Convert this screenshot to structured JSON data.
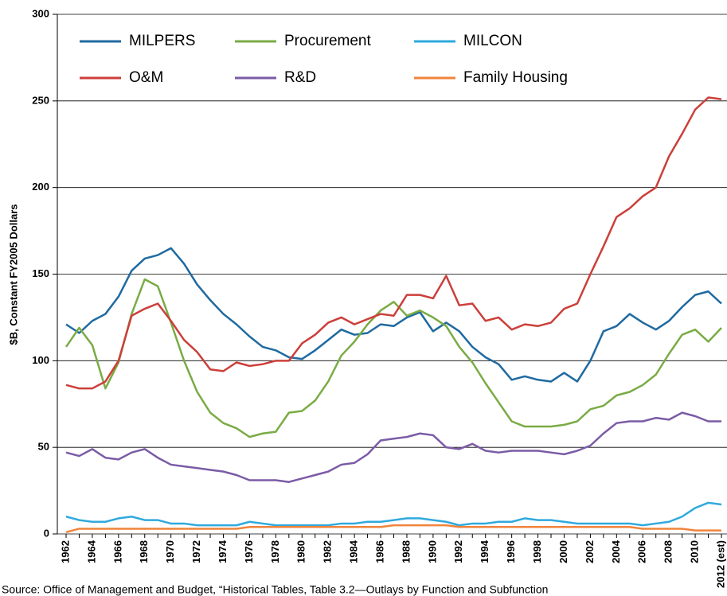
{
  "chart_data": {
    "type": "line",
    "ylabel": "$B, Constant FY2005 Dollars",
    "source": "Source: Office of Management and Budget, “Historical Tables, Table 3.2—Outlays by Function and Subfunction",
    "categories": [
      "1962",
      null,
      "1964",
      null,
      "1966",
      null,
      "1968",
      null,
      "1970",
      null,
      "1972",
      null,
      "1974",
      null,
      "1976",
      null,
      "1978",
      null,
      "1980",
      null,
      "1982",
      null,
      "1984",
      null,
      "1986",
      null,
      "1988",
      null,
      "1990",
      null,
      "1992",
      null,
      "1994",
      null,
      "1996",
      null,
      "1998",
      null,
      "2000",
      null,
      "2002",
      null,
      "2004",
      null,
      "2006",
      null,
      "2008",
      null,
      "2010",
      null,
      "2012 (est)"
    ],
    "series": [
      {
        "name": "MILPERS",
        "color": "#1f6aa0",
        "values": [
          121,
          116,
          123,
          127,
          137,
          152,
          159,
          161,
          165,
          156,
          144,
          135,
          127,
          121,
          114,
          108,
          106,
          102,
          101,
          106,
          112,
          118,
          115,
          116,
          121,
          120,
          125,
          128,
          117,
          122,
          117,
          108,
          102,
          98,
          89,
          91,
          89,
          88,
          93,
          88,
          100,
          117,
          120,
          127,
          122,
          118,
          123,
          131,
          138,
          140,
          133
        ]
      },
      {
        "name": "Procurement",
        "color": "#7aab45",
        "values": [
          108,
          119,
          109,
          84,
          99,
          127,
          147,
          143,
          122,
          100,
          82,
          70,
          64,
          61,
          56,
          58,
          59,
          70,
          71,
          77,
          88,
          103,
          111,
          121,
          129,
          134,
          126,
          129,
          125,
          120,
          108,
          99,
          87,
          76,
          65,
          62,
          62,
          62,
          63,
          65,
          72,
          74,
          80,
          82,
          86,
          92,
          104,
          115,
          118,
          111,
          119
        ]
      },
      {
        "name": "MILCON",
        "color": "#2fa9dd",
        "values": [
          10,
          8,
          7,
          7,
          9,
          10,
          8,
          8,
          6,
          6,
          5,
          5,
          5,
          5,
          7,
          6,
          5,
          5,
          5,
          5,
          5,
          6,
          6,
          7,
          7,
          8,
          9,
          9,
          8,
          7,
          5,
          6,
          6,
          7,
          7,
          9,
          8,
          8,
          7,
          6,
          6,
          6,
          6,
          6,
          5,
          6,
          7,
          10,
          15,
          18,
          17
        ]
      },
      {
        "name": "O&M",
        "color": "#cc3f3a",
        "values": [
          86,
          84,
          84,
          88,
          100,
          126,
          130,
          133,
          123,
          112,
          105,
          95,
          94,
          99,
          97,
          98,
          100,
          100,
          110,
          115,
          122,
          125,
          121,
          124,
          127,
          126,
          138,
          138,
          136,
          149,
          132,
          133,
          123,
          125,
          118,
          121,
          120,
          122,
          130,
          133,
          150,
          166,
          183,
          188,
          195,
          200,
          218,
          231,
          245,
          252,
          251
        ]
      },
      {
        "name": "R&D",
        "color": "#7b5ba6",
        "values": [
          47,
          45,
          49,
          44,
          43,
          47,
          49,
          44,
          40,
          39,
          38,
          37,
          36,
          34,
          31,
          31,
          31,
          30,
          32,
          34,
          36,
          40,
          41,
          46,
          54,
          55,
          56,
          58,
          57,
          50,
          49,
          52,
          48,
          47,
          48,
          48,
          48,
          47,
          46,
          48,
          51,
          58,
          64,
          65,
          65,
          67,
          66,
          70,
          68,
          65,
          65
        ]
      },
      {
        "name": "Family Housing",
        "color": "#f0843c",
        "values": [
          1,
          3,
          3,
          3,
          3,
          3,
          3,
          3,
          3,
          3,
          3,
          3,
          3,
          3,
          4,
          4,
          4,
          4,
          4,
          4,
          4,
          4,
          4,
          4,
          4,
          5,
          5,
          5,
          5,
          5,
          4,
          4,
          4,
          4,
          4,
          4,
          4,
          4,
          4,
          4,
          4,
          4,
          4,
          4,
          3,
          3,
          3,
          3,
          2,
          2,
          2
        ]
      }
    ],
    "ylim": [
      0,
      300
    ],
    "yticks": [
      0,
      50,
      100,
      150,
      200,
      250,
      300
    ],
    "grid": true
  }
}
